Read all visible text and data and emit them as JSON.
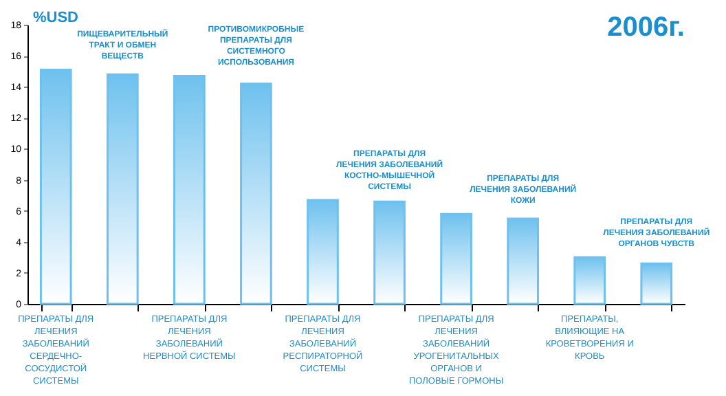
{
  "chart_data": {
    "type": "bar",
    "title": "2006г.",
    "ylabel": "%USD",
    "categories": [
      "ПРЕПАРАТЫ ДЛЯ ЛЕЧЕНИЯ ЗАБОЛЕВАНИЙ СЕРДЕЧНО-СОСУДИСТОЙ СИСТЕМЫ",
      "ПИЩЕВАРИТЕЛЬНЫЙ ТРАКТ И ОБМЕН ВЕЩЕСТВ",
      "ПРЕПАРАТЫ ДЛЯ ЛЕЧЕНИЯ ЗАБОЛЕВАНИЙ НЕРВНОЙ СИСТЕМЫ",
      "ПРОТИВОМИКРОБНЫЕ ПРЕПАРАТЫ ДЛЯ СИСТЕМНОГО ИСПОЛЬЗОВАНИЯ",
      "ПРЕПАРАТЫ ДЛЯ ЛЕЧЕНИЯ ЗАБОЛЕВАНИЙ РЕСПИРАТОРНОЙ СИСТЕМЫ",
      "ПРЕПАРАТЫ ДЛЯ ЛЕЧЕНИЯ ЗАБОЛЕВАНИЙ КОСТНО-МЫШЕЧНОЙ СИСТЕМЫ",
      "ПРЕПАРАТЫ ДЛЯ ЛЕЧЕНИЯ ЗАБОЛЕВАНИЙ УРОГЕНИТАЛЬНЫХ ОРГАНОВ И ПОЛОВЫЕ ГОРМОНЫ",
      "ПРЕПАРАТЫ ДЛЯ ЛЕЧЕНИЯ ЗАБОЛЕВАНИЙ КОЖИ",
      "ПРЕПАРАТЫ, ВЛИЯЮЩИЕ НА КРОВЕТВОРЕНИЯ И КРОВЬ",
      "ПРЕПАРАТЫ ДЛЯ ЛЕЧЕНИЯ ЗАБОЛЕВАНИЙ ОРГАНОВ ЧУВСТВ"
    ],
    "values": [
      15.1,
      14.8,
      14.7,
      14.2,
      6.7,
      6.6,
      5.8,
      5.5,
      3.0,
      2.6
    ],
    "color": "#6ec1ee",
    "ylim": [
      0,
      18
    ],
    "yticks": [
      0,
      2,
      4,
      6,
      8,
      10,
      12,
      14,
      16,
      18
    ],
    "grid": false
  }
}
